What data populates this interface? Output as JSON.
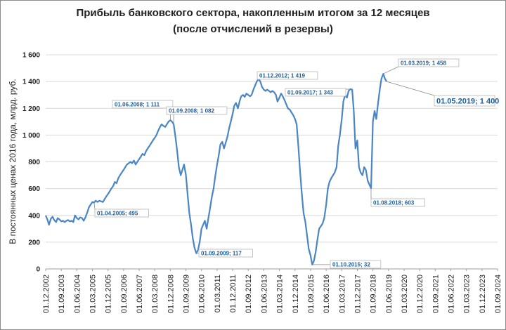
{
  "chart_data": {
    "type": "line",
    "title": "Прибыль банковского сектора, накопленным итогом за 12 месяцев",
    "subtitle": "(после отчислений в резервы)",
    "ylabel": "В постоянных ценах 2016 года, млрд. руб.",
    "xlabel": "",
    "ylim": [
      0,
      1600
    ],
    "yticks": [
      "0",
      "200",
      "400",
      "600",
      "800",
      "1 000",
      "1 200",
      "1 400",
      "1 600"
    ],
    "xticks": [
      "01.12.2002",
      "01.09.2003",
      "01.06.2004",
      "01.03.2005",
      "01.12.2005",
      "01.09.2006",
      "01.06.2007",
      "01.03.2008",
      "01.12.2008",
      "01.09.2009",
      "01.06.2010",
      "01.03.2011",
      "01.12.2011",
      "01.09.2012",
      "01.06.2013",
      "01.03.2014",
      "01.12.2014",
      "01.09.2015",
      "01.06.2016",
      "01.03.2017",
      "01.12.2017",
      "01.09.2018",
      "01.06.2019",
      "01.03.2020",
      "01.12.2020",
      "01.09.2021",
      "01.06.2022",
      "01.03.2023",
      "01.12.2023",
      "01.09.2024"
    ],
    "grid": true,
    "line_color": "#4a86c5",
    "series": [
      {
        "values": [
          [
            2002.92,
            400
          ],
          [
            2003.0,
            370
          ],
          [
            2003.08,
            330
          ],
          [
            2003.17,
            375
          ],
          [
            2003.25,
            390
          ],
          [
            2003.33,
            365
          ],
          [
            2003.42,
            350
          ],
          [
            2003.5,
            380
          ],
          [
            2003.58,
            370
          ],
          [
            2003.67,
            355
          ],
          [
            2003.75,
            360
          ],
          [
            2003.83,
            350
          ],
          [
            2003.92,
            360
          ],
          [
            2004.0,
            365
          ],
          [
            2004.08,
            355
          ],
          [
            2004.17,
            360
          ],
          [
            2004.25,
            350
          ],
          [
            2004.33,
            400
          ],
          [
            2004.42,
            380
          ],
          [
            2004.5,
            370
          ],
          [
            2004.58,
            385
          ],
          [
            2004.67,
            380
          ],
          [
            2004.75,
            360
          ],
          [
            2004.83,
            385
          ],
          [
            2004.92,
            420
          ],
          [
            2005.0,
            460
          ],
          [
            2005.08,
            480
          ],
          [
            2005.17,
            500
          ],
          [
            2005.25,
            495
          ],
          [
            2005.33,
            510
          ],
          [
            2005.42,
            500
          ],
          [
            2005.5,
            510
          ],
          [
            2005.58,
            505
          ],
          [
            2005.67,
            500
          ],
          [
            2005.75,
            520
          ],
          [
            2005.83,
            540
          ],
          [
            2005.92,
            560
          ],
          [
            2006.0,
            580
          ],
          [
            2006.08,
            600
          ],
          [
            2006.17,
            620
          ],
          [
            2006.25,
            650
          ],
          [
            2006.33,
            640
          ],
          [
            2006.42,
            680
          ],
          [
            2006.5,
            700
          ],
          [
            2006.58,
            720
          ],
          [
            2006.67,
            740
          ],
          [
            2006.75,
            760
          ],
          [
            2006.83,
            780
          ],
          [
            2006.92,
            790
          ],
          [
            2007.0,
            800
          ],
          [
            2007.08,
            790
          ],
          [
            2007.17,
            810
          ],
          [
            2007.25,
            780
          ],
          [
            2007.33,
            800
          ],
          [
            2007.42,
            820
          ],
          [
            2007.5,
            840
          ],
          [
            2007.58,
            860
          ],
          [
            2007.67,
            850
          ],
          [
            2007.75,
            880
          ],
          [
            2007.83,
            900
          ],
          [
            2007.92,
            920
          ],
          [
            2008.0,
            940
          ],
          [
            2008.08,
            960
          ],
          [
            2008.17,
            980
          ],
          [
            2008.25,
            1000
          ],
          [
            2008.33,
            1030
          ],
          [
            2008.42,
            1060
          ],
          [
            2008.5,
            1080
          ],
          [
            2008.58,
            1070
          ],
          [
            2008.67,
            1060
          ],
          [
            2008.75,
            1080
          ],
          [
            2008.83,
            1100
          ],
          [
            2008.92,
            1111
          ],
          [
            2009.0,
            1100
          ],
          [
            2009.08,
            1082
          ],
          [
            2009.17,
            980
          ],
          [
            2009.25,
            880
          ],
          [
            2009.33,
            760
          ],
          [
            2009.42,
            700
          ],
          [
            2009.5,
            740
          ],
          [
            2009.58,
            780
          ],
          [
            2009.67,
            700
          ],
          [
            2009.75,
            560
          ],
          [
            2009.83,
            420
          ],
          [
            2009.92,
            330
          ],
          [
            2010.0,
            230
          ],
          [
            2010.08,
            160
          ],
          [
            2010.17,
            117
          ],
          [
            2010.25,
            140
          ],
          [
            2010.33,
            200
          ],
          [
            2010.42,
            300
          ],
          [
            2010.5,
            330
          ],
          [
            2010.58,
            360
          ],
          [
            2010.67,
            300
          ],
          [
            2010.75,
            380
          ],
          [
            2010.83,
            450
          ],
          [
            2010.92,
            540
          ],
          [
            2011.0,
            600
          ],
          [
            2011.08,
            690
          ],
          [
            2011.17,
            780
          ],
          [
            2011.25,
            850
          ],
          [
            2011.33,
            930
          ],
          [
            2011.42,
            950
          ],
          [
            2011.5,
            900
          ],
          [
            2011.58,
            940
          ],
          [
            2011.67,
            990
          ],
          [
            2011.75,
            1050
          ],
          [
            2011.83,
            1100
          ],
          [
            2011.92,
            1160
          ],
          [
            2012.0,
            1220
          ],
          [
            2012.08,
            1240
          ],
          [
            2012.17,
            1200
          ],
          [
            2012.25,
            1250
          ],
          [
            2012.33,
            1290
          ],
          [
            2012.42,
            1300
          ],
          [
            2012.5,
            1285
          ],
          [
            2012.58,
            1310
          ],
          [
            2012.67,
            1300
          ],
          [
            2012.75,
            1290
          ],
          [
            2012.83,
            1300
          ],
          [
            2012.92,
            1340
          ],
          [
            2013.0,
            1370
          ],
          [
            2013.08,
            1400
          ],
          [
            2013.17,
            1419
          ],
          [
            2013.25,
            1400
          ],
          [
            2013.33,
            1360
          ],
          [
            2013.42,
            1340
          ],
          [
            2013.5,
            1330
          ],
          [
            2013.58,
            1340
          ],
          [
            2013.67,
            1330
          ],
          [
            2013.75,
            1320
          ],
          [
            2013.83,
            1330
          ],
          [
            2013.92,
            1320
          ],
          [
            2014.0,
            1300
          ],
          [
            2014.08,
            1250
          ],
          [
            2014.17,
            1280
          ],
          [
            2014.25,
            1310
          ],
          [
            2014.33,
            1290
          ],
          [
            2014.42,
            1260
          ],
          [
            2014.5,
            1230
          ],
          [
            2014.58,
            1200
          ],
          [
            2014.67,
            1190
          ],
          [
            2014.75,
            1170
          ],
          [
            2014.83,
            1150
          ],
          [
            2014.92,
            1120
          ],
          [
            2015.0,
            1080
          ],
          [
            2015.08,
            920
          ],
          [
            2015.17,
            720
          ],
          [
            2015.25,
            560
          ],
          [
            2015.33,
            420
          ],
          [
            2015.42,
            350
          ],
          [
            2015.5,
            250
          ],
          [
            2015.58,
            150
          ],
          [
            2015.67,
            100
          ],
          [
            2015.75,
            32
          ],
          [
            2015.83,
            60
          ],
          [
            2015.92,
            130
          ],
          [
            2016.0,
            220
          ],
          [
            2016.08,
            300
          ],
          [
            2016.17,
            320
          ],
          [
            2016.25,
            340
          ],
          [
            2016.33,
            380
          ],
          [
            2016.42,
            480
          ],
          [
            2016.5,
            600
          ],
          [
            2016.58,
            650
          ],
          [
            2016.67,
            680
          ],
          [
            2016.75,
            700
          ],
          [
            2016.83,
            720
          ],
          [
            2016.92,
            760
          ],
          [
            2017.0,
            920
          ],
          [
            2017.08,
            1000
          ],
          [
            2017.17,
            1120
          ],
          [
            2017.25,
            1250
          ],
          [
            2017.33,
            1300
          ],
          [
            2017.42,
            1280
          ],
          [
            2017.5,
            1330
          ],
          [
            2017.58,
            1343
          ],
          [
            2017.67,
            1340
          ],
          [
            2017.75,
            1180
          ],
          [
            2017.83,
            900
          ],
          [
            2017.92,
            960
          ],
          [
            2018.0,
            760
          ],
          [
            2018.08,
            720
          ],
          [
            2018.17,
            700
          ],
          [
            2018.25,
            760
          ],
          [
            2018.33,
            740
          ],
          [
            2018.42,
            660
          ],
          [
            2018.5,
            630
          ],
          [
            2018.58,
            603
          ],
          [
            2018.67,
            1100
          ],
          [
            2018.75,
            1180
          ],
          [
            2018.83,
            1120
          ],
          [
            2018.92,
            1240
          ],
          [
            2019.0,
            1340
          ],
          [
            2019.08,
            1420
          ],
          [
            2019.17,
            1458
          ],
          [
            2019.25,
            1420
          ],
          [
            2019.33,
            1400
          ]
        ]
      }
    ],
    "annotations": [
      {
        "label": "01.04.2005; 495",
        "x": 2005.25,
        "y": 495
      },
      {
        "label": "01.06.2008; 1 111",
        "x": 2008.92,
        "y": 1111
      },
      {
        "label": "01.09.2008; 1 082",
        "x": 2009.08,
        "y": 1082
      },
      {
        "label": "01.09.2009; 117",
        "x": 2010.17,
        "y": 117
      },
      {
        "label": "01.12.2012; 1 419",
        "x": 2013.17,
        "y": 1419
      },
      {
        "label": "01.10.2015; 32",
        "x": 2015.75,
        "y": 32
      },
      {
        "label": "01.09.2017; 1 343",
        "x": 2017.58,
        "y": 1343
      },
      {
        "label": "01.08.2018; 603",
        "x": 2018.58,
        "y": 603
      },
      {
        "label": "01.03.2019; 1 458",
        "x": 2019.17,
        "y": 1458
      },
      {
        "label": "01.05.2019; 1 400",
        "x": 2019.33,
        "y": 1400
      }
    ]
  }
}
